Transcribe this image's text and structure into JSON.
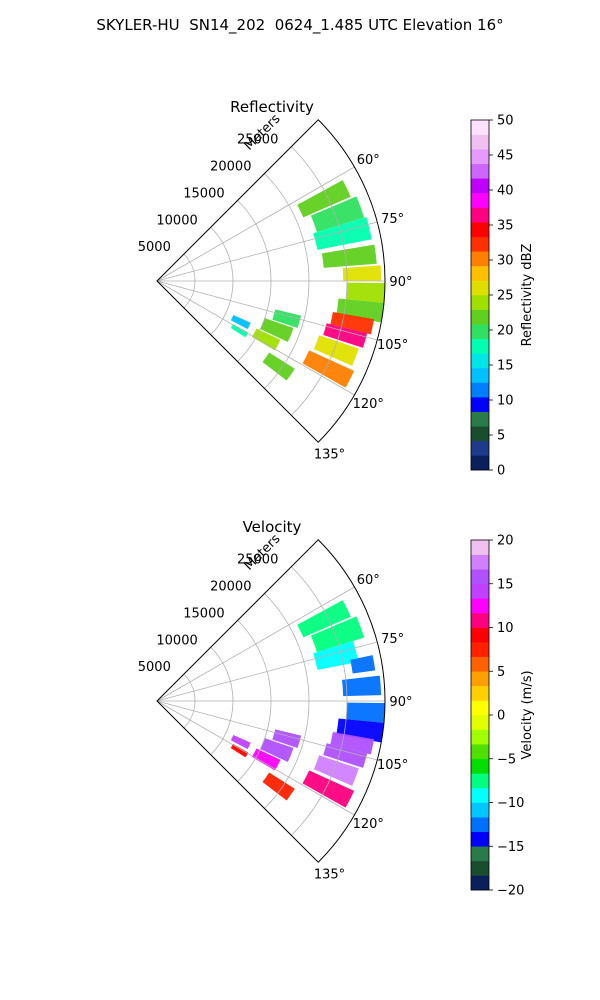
{
  "suptitle": "SKYLER-HU  SN14_202  0624_1.485 UTC Elevation 16°",
  "chart_data": [
    {
      "type": "heatmap",
      "title": "Reflectivity",
      "range_label": "Meters",
      "r_ticks": [
        5000,
        10000,
        15000,
        20000,
        25000
      ],
      "r_tick_labels": [
        "5000",
        "10000",
        "15000",
        "20000",
        "25000"
      ],
      "r_max": 30000,
      "theta_ticks": [
        60,
        75,
        90,
        105,
        120,
        135
      ],
      "theta_tick_labels": [
        "60°",
        "75°",
        "90°",
        "105°",
        "120°",
        "135°"
      ],
      "theta_range": [
        45,
        135
      ],
      "colorbar": {
        "label": "Reflectivity dBZ",
        "vmin": 0,
        "vmax": 50,
        "ticks": [
          0,
          5,
          10,
          15,
          20,
          25,
          30,
          35,
          40,
          45,
          50
        ],
        "tick_labels": [
          "0",
          "5",
          "10",
          "15",
          "20",
          "25",
          "30",
          "35",
          "40",
          "45",
          "50"
        ],
        "colors": [
          "#0a1f5c",
          "#1e3a8a",
          "#1a4d2e",
          "#2a7a4a",
          "#0000ff",
          "#0080ff",
          "#00c0ff",
          "#00e5e5",
          "#00ffb0",
          "#30e060",
          "#60d020",
          "#a0e000",
          "#e0e000",
          "#ffc000",
          "#ff8000",
          "#ff3000",
          "#ff0000",
          "#ff0080",
          "#ff00ff",
          "#c000ff",
          "#cc66ff",
          "#e699ff",
          "#f0c0f0",
          "#ffe0ff"
        ]
      },
      "cells": [
        {
          "theta": 64,
          "r0": 21000,
          "r1": 27800,
          "w": 5,
          "value": 21
        },
        {
          "theta": 70,
          "r0": 22000,
          "r1": 28500,
          "w": 6,
          "value": 20
        },
        {
          "theta": 76,
          "r0": 21500,
          "r1": 28800,
          "w": 6,
          "value": 18
        },
        {
          "theta": 83,
          "r0": 22000,
          "r1": 29000,
          "w": 5,
          "value": 22
        },
        {
          "theta": 88,
          "r0": 24500,
          "r1": 29500,
          "w": 4,
          "value": 26
        },
        {
          "theta": 93,
          "r0": 25000,
          "r1": 30000,
          "w": 5,
          "value": 24
        },
        {
          "theta": 98,
          "r0": 24000,
          "r1": 30000,
          "w": 5,
          "value": 22
        },
        {
          "theta": 102,
          "r0": 23500,
          "r1": 29000,
          "w": 4,
          "value": 33
        },
        {
          "theta": 106,
          "r0": 23000,
          "r1": 28500,
          "w": 4,
          "value": 36
        },
        {
          "theta": 111,
          "r0": 22500,
          "r1": 28000,
          "w": 5,
          "value": 27
        },
        {
          "theta": 117,
          "r0": 22000,
          "r1": 28500,
          "w": 5,
          "value": 31
        },
        {
          "theta": 106,
          "r0": 16000,
          "r1": 19500,
          "w": 5,
          "value": 20
        },
        {
          "theta": 112,
          "r0": 15000,
          "r1": 19000,
          "w": 6,
          "value": 22
        },
        {
          "theta": 118,
          "r0": 14500,
          "r1": 18000,
          "w": 5,
          "value": 24
        },
        {
          "theta": 125,
          "r0": 17500,
          "r1": 21500,
          "w": 5,
          "value": 21
        },
        {
          "theta": 116,
          "r0": 11000,
          "r1": 13500,
          "w": 4,
          "value": 14
        },
        {
          "theta": 121,
          "r0": 11500,
          "r1": 13800,
          "w": 3,
          "value": 18
        }
      ]
    },
    {
      "type": "heatmap",
      "title": "Velocity",
      "range_label": "Meters",
      "r_ticks": [
        5000,
        10000,
        15000,
        20000,
        25000
      ],
      "r_tick_labels": [
        "5000",
        "10000",
        "15000",
        "20000",
        "25000"
      ],
      "r_max": 30000,
      "theta_ticks": [
        60,
        75,
        90,
        105,
        120,
        135
      ],
      "theta_tick_labels": [
        "60°",
        "75°",
        "90°",
        "105°",
        "120°",
        "135°"
      ],
      "theta_range": [
        45,
        135
      ],
      "colorbar": {
        "label": "Velocity (m/s)",
        "vmin": -20,
        "vmax": 20,
        "ticks": [
          -20,
          -15,
          -10,
          -5,
          0,
          5,
          10,
          15,
          20
        ],
        "tick_labels": [
          "−20",
          "−15",
          "−10",
          "−5",
          "0",
          "5",
          "10",
          "15",
          "20"
        ],
        "colors": [
          "#0a1f5c",
          "#1a4d2e",
          "#2a7a4a",
          "#0000ff",
          "#0070ff",
          "#00c8ff",
          "#00ffff",
          "#00ff80",
          "#00e000",
          "#50e000",
          "#a0ff00",
          "#e0ff00",
          "#ffff00",
          "#ffd000",
          "#ffa000",
          "#ff6000",
          "#ff2000",
          "#ff0000",
          "#ff0080",
          "#ff00ff",
          "#c040ff",
          "#b050ff",
          "#d080ff",
          "#f0c0f0"
        ]
      },
      "cells": [
        {
          "theta": 64,
          "r0": 21000,
          "r1": 27800,
          "w": 5,
          "value": -7
        },
        {
          "theta": 70,
          "r0": 22000,
          "r1": 28500,
          "w": 6,
          "value": -8
        },
        {
          "theta": 76,
          "r0": 21500,
          "r1": 27000,
          "w": 6,
          "value": -10
        },
        {
          "theta": 80,
          "r0": 26000,
          "r1": 29000,
          "w": 4,
          "value": -13
        },
        {
          "theta": 86,
          "r0": 24500,
          "r1": 29500,
          "w": 5,
          "value": -13
        },
        {
          "theta": 93,
          "r0": 25000,
          "r1": 30000,
          "w": 5,
          "value": -12
        },
        {
          "theta": 98,
          "r0": 24000,
          "r1": 30000,
          "w": 5,
          "value": -14
        },
        {
          "theta": 102,
          "r0": 23500,
          "r1": 29000,
          "w": 4,
          "value": 16
        },
        {
          "theta": 106,
          "r0": 23000,
          "r1": 28500,
          "w": 4,
          "value": 15
        },
        {
          "theta": 111,
          "r0": 22500,
          "r1": 28000,
          "w": 5,
          "value": 17
        },
        {
          "theta": 117,
          "r0": 22000,
          "r1": 28500,
          "w": 5,
          "value": 11
        },
        {
          "theta": 106,
          "r0": 16000,
          "r1": 19500,
          "w": 5,
          "value": 15
        },
        {
          "theta": 112,
          "r0": 15000,
          "r1": 19000,
          "w": 6,
          "value": 16
        },
        {
          "theta": 118,
          "r0": 14500,
          "r1": 18000,
          "w": 5,
          "value": 13
        },
        {
          "theta": 125,
          "r0": 17500,
          "r1": 21500,
          "w": 5,
          "value": 7
        },
        {
          "theta": 116,
          "r0": 11000,
          "r1": 13500,
          "w": 4,
          "value": 14
        },
        {
          "theta": 121,
          "r0": 11500,
          "r1": 13800,
          "w": 3,
          "value": 9
        }
      ]
    }
  ]
}
